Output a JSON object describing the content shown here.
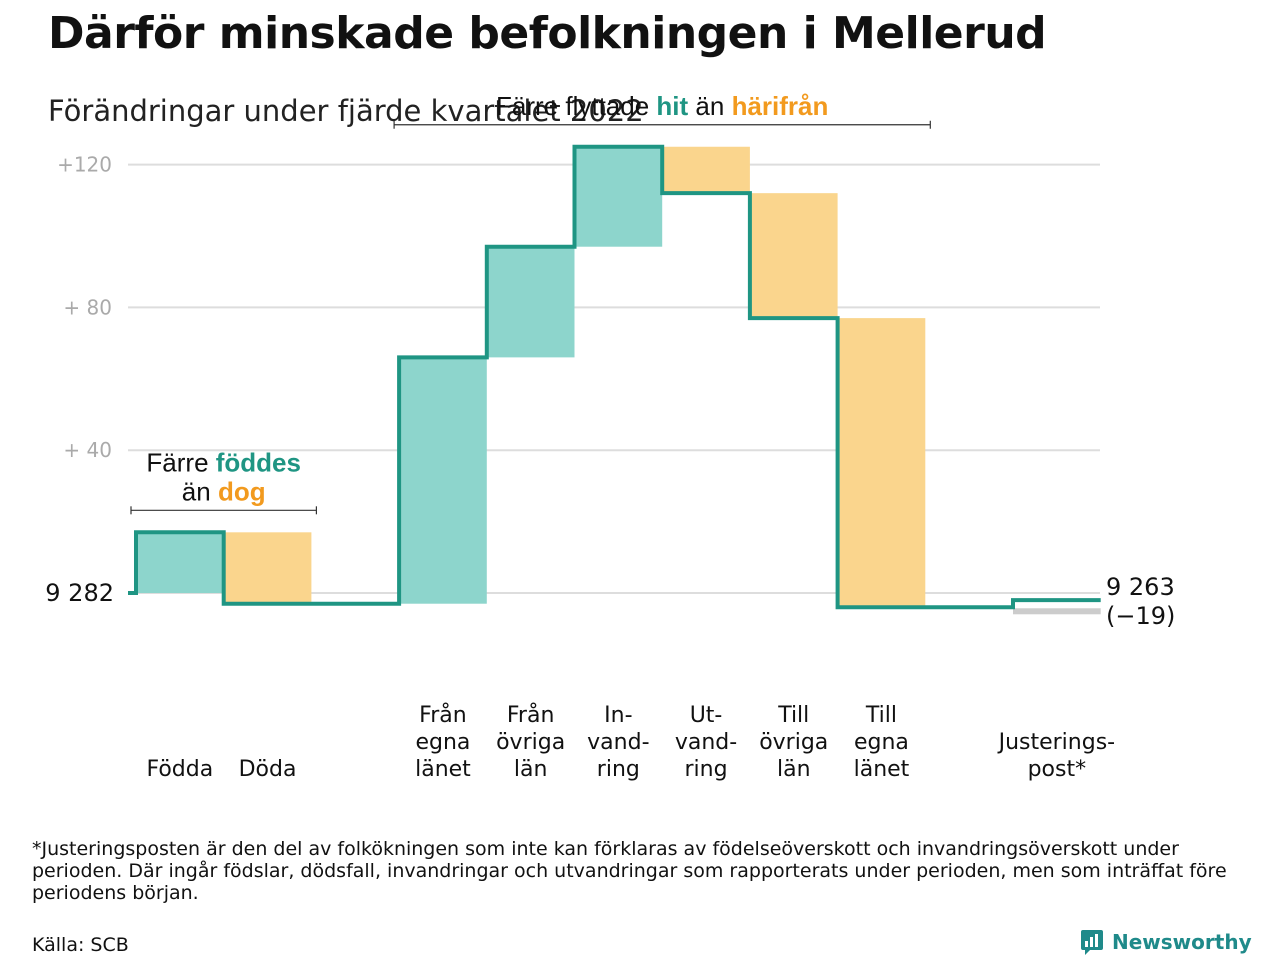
{
  "title": "Därför minskade befolkningen i Mellerud",
  "subtitle": "Förändringar under fjärde kvartalet 2022",
  "colors": {
    "in": "#8dd5cc",
    "out": "#fad58d",
    "line": "#1f9583",
    "in_text": "#1f9583",
    "out_text": "#f29a1e",
    "grid": "#dddddd",
    "adjust": "#cccccc"
  },
  "chart_data": {
    "type": "waterfall",
    "start_value": 9282,
    "end_value": 9263,
    "start_label": "9 282",
    "end_label": "9 263",
    "end_change_label": "(−19)",
    "ylim": [
      -25,
      120
    ],
    "yticks": [
      {
        "value": 120,
        "label": "+120"
      },
      {
        "value": 80,
        "label": "+ 80"
      },
      {
        "value": 40,
        "label": "+ 40"
      }
    ],
    "grid": true,
    "steps": [
      {
        "label": [
          "Födda"
        ],
        "delta": 17,
        "kind": "in"
      },
      {
        "label": [
          "Döda"
        ],
        "delta": -20,
        "kind": "out"
      },
      {
        "label": [],
        "delta": 0,
        "kind": "gap"
      },
      {
        "label": [
          "Från",
          "egna",
          "länet"
        ],
        "delta": 69,
        "kind": "in"
      },
      {
        "label": [
          "Från",
          "övriga",
          "län"
        ],
        "delta": 31,
        "kind": "in"
      },
      {
        "label": [
          "In-",
          "vand-",
          "ring"
        ],
        "delta": 28,
        "kind": "in"
      },
      {
        "label": [
          "Ut-",
          "vand-",
          "ring"
        ],
        "delta": -13,
        "kind": "out"
      },
      {
        "label": [
          "Till",
          "övriga",
          "län"
        ],
        "delta": -35,
        "kind": "out"
      },
      {
        "label": [
          "Till",
          "egna",
          "länet"
        ],
        "delta": -81,
        "kind": "out"
      },
      {
        "label": [],
        "delta": 0,
        "kind": "gap"
      },
      {
        "label": [
          "Justerings-",
          "post*"
        ],
        "delta": 2,
        "kind": "adjust"
      }
    ],
    "annotations": [
      {
        "lines": [
          [
            {
              "text": "Färre ",
              "style": "plain"
            },
            {
              "text": "föddes",
              "style": "in"
            }
          ],
          [
            {
              "text": "än ",
              "style": "plain"
            },
            {
              "text": "dog",
              "style": "out"
            }
          ]
        ],
        "from_step": 0,
        "to_step": 1
      },
      {
        "lines": [
          [
            {
              "text": "Färre flyttade ",
              "style": "plain"
            },
            {
              "text": "hit",
              "style": "in"
            },
            {
              "text": " än ",
              "style": "plain"
            },
            {
              "text": "härifrån",
              "style": "out"
            }
          ]
        ],
        "from_step": 3,
        "to_step": 8
      }
    ]
  },
  "footnote": "*Justeringsposten är den del av folkökningen som inte kan förklaras av födelseöverskott och invandringsöverskott under perioden. Där ingår födslar, dödsfall, invandringar och utvandringar som rapporterats under perioden, men som inträffat före periodens början.",
  "source": "Källa: SCB",
  "brand": {
    "name": "Newsworthy",
    "icon": "newsworthy-logo-icon"
  }
}
